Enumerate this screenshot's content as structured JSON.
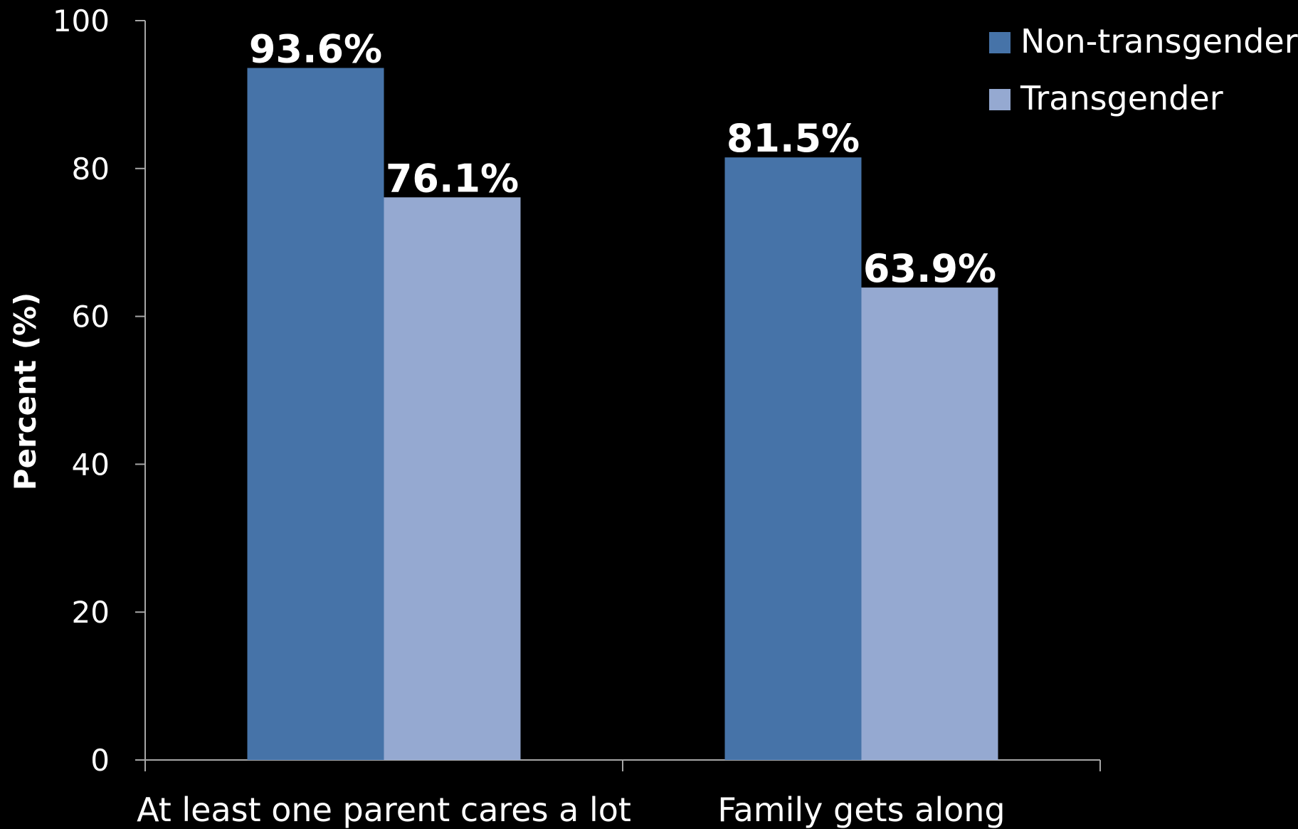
{
  "chart_data": {
    "type": "bar",
    "categories": [
      "At least one parent cares a lot",
      "Family gets along"
    ],
    "series": [
      {
        "name": "Non-transgender",
        "values": [
          93.6,
          81.5
        ],
        "labels": [
          "93.6%",
          "81.5%"
        ],
        "color": "#4673A8"
      },
      {
        "name": "Transgender",
        "values": [
          76.1,
          63.9
        ],
        "labels": [
          "76.1%",
          "63.9%"
        ],
        "color": "#95A9D1"
      }
    ],
    "title": "",
    "xlabel": "",
    "ylabel": "Percent (%)",
    "ylim": [
      0,
      100
    ],
    "yticks": [
      0,
      20,
      40,
      60,
      80,
      100
    ],
    "grid": false,
    "legend_position": "top-right",
    "background": "#000000",
    "axis_color": "#A6A6A6"
  }
}
